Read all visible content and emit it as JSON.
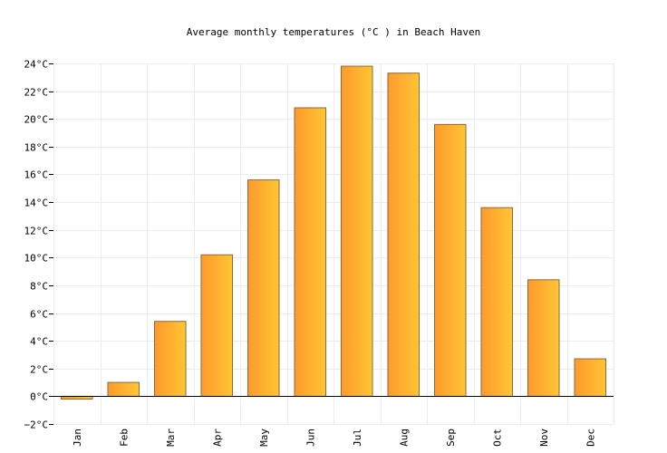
{
  "chart_data": {
    "type": "bar",
    "title": "Average monthly temperatures (°C ) in Beach Haven",
    "xlabel": "",
    "ylabel": "",
    "categories": [
      "Jan",
      "Feb",
      "Mar",
      "Apr",
      "May",
      "Jun",
      "Jul",
      "Aug",
      "Sep",
      "Oct",
      "Nov",
      "Dec"
    ],
    "values": [
      -0.2,
      1.0,
      5.4,
      10.2,
      15.6,
      20.8,
      23.8,
      23.3,
      19.6,
      13.6,
      8.4,
      2.7
    ],
    "ylim": [
      -2,
      24
    ],
    "y_ticks": [
      -2,
      0,
      2,
      4,
      6,
      8,
      10,
      12,
      14,
      16,
      18,
      20,
      22,
      24
    ],
    "y_tick_labels": [
      "−2°C",
      "0°C",
      "2°C",
      "4°C",
      "6°C",
      "8°C",
      "10°C",
      "12°C",
      "14°C",
      "16°C",
      "18°C",
      "20°C",
      "22°C",
      "24°C"
    ],
    "grid": true,
    "legend": "none",
    "colors": {
      "bar_gradient_start": "#ff9a2e",
      "bar_gradient_end": "#ffc533",
      "bar_stroke": "#8a6a3a",
      "grid": "#ececec",
      "axis": "#000000"
    }
  }
}
